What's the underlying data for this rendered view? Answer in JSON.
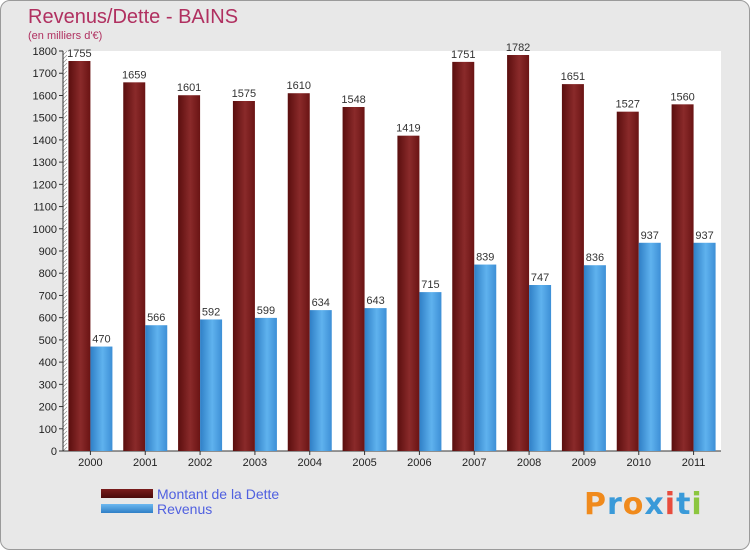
{
  "chart_data": {
    "type": "bar",
    "title": "Revenus/Dette - BAINS",
    "subtitle": "(en milliers d'€)",
    "categories": [
      "2000",
      "2001",
      "2002",
      "2003",
      "2004",
      "2005",
      "2006",
      "2007",
      "2008",
      "2009",
      "2010",
      "2011"
    ],
    "series": [
      {
        "name": "Montant de la Dette",
        "values": [
          1755,
          1659,
          1601,
          1575,
          1610,
          1548,
          1419,
          1751,
          1782,
          1651,
          1527,
          1560
        ],
        "color": "#7a1c1c"
      },
      {
        "name": "Revenus",
        "values": [
          470,
          566,
          592,
          599,
          634,
          643,
          715,
          839,
          747,
          836,
          937,
          937
        ],
        "color": "#4aa3e6"
      }
    ],
    "yticks": [
      0,
      100,
      200,
      300,
      400,
      500,
      600,
      700,
      800,
      900,
      1000,
      1100,
      1200,
      1300,
      1400,
      1500,
      1600,
      1700,
      1800
    ],
    "ylim": [
      0,
      1800
    ],
    "grid": false,
    "legend_position": "bottom-left"
  },
  "logo": {
    "letters": [
      "P",
      "r",
      "o",
      "x",
      "i",
      "t",
      "i"
    ],
    "colors": [
      "#f08a1c",
      "#3a9ad9",
      "#f08a1c",
      "#3a9ad9",
      "#e84c3d",
      "#3a9ad9",
      "#8cc63f"
    ]
  }
}
